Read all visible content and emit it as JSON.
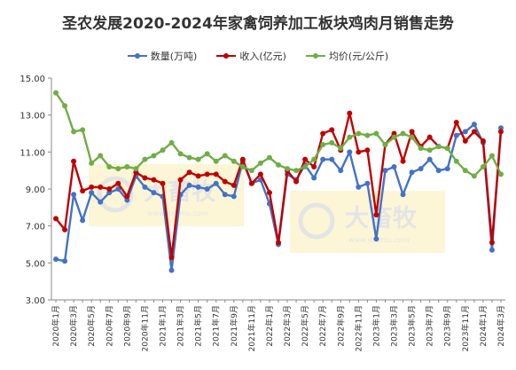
{
  "colors": {
    "series": [
      "#4472c4",
      "#c00000",
      "#70ad47"
    ],
    "watermark_bg": "#fbf3c8",
    "watermark_text": "#e4e4e4"
  },
  "watermark": {
    "cn": "大畜牧",
    "en": "www.dxumu.com"
  },
  "chart_data": {
    "type": "line",
    "title": "圣农发展2020-2024年家禽饲养加工板块鸡肉月销售走势",
    "ylim": [
      3.0,
      15.0
    ],
    "yticks": [
      "3.00",
      "5.00",
      "7.00",
      "9.00",
      "11.00",
      "13.00",
      "15.00"
    ],
    "grid": false,
    "legend_position": "top",
    "x": [
      "2020年1月",
      "2020年2月",
      "2020年3月",
      "2020年4月",
      "2020年5月",
      "2020年6月",
      "2020年7月",
      "2020年8月",
      "2020年9月",
      "2020年10月",
      "2020年11月",
      "2020年12月",
      "2021年1月",
      "2021年2月",
      "2021年3月",
      "2021年4月",
      "2021年5月",
      "2021年6月",
      "2021年7月",
      "2021年8月",
      "2021年9月",
      "2021年10月",
      "2021年11月",
      "2021年12月",
      "2022年1月",
      "2022年2月",
      "2022年3月",
      "2022年4月",
      "2022年5月",
      "2022年6月",
      "2022年7月",
      "2022年8月",
      "2022年9月",
      "2022年10月",
      "2022年11月",
      "2022年12月",
      "2023年1月",
      "2023年2月",
      "2023年3月",
      "2023年4月",
      "2023年5月",
      "2023年6月",
      "2023年7月",
      "2023年8月",
      "2023年9月",
      "2023年10月",
      "2023年11月",
      "2023年12月",
      "2024年1月",
      "2024年2月",
      "2024年3月"
    ],
    "series": [
      {
        "name": "数量(万吨)",
        "values": [
          5.2,
          5.1,
          8.7,
          7.3,
          8.8,
          8.3,
          8.8,
          9.0,
          8.4,
          9.7,
          9.1,
          8.8,
          8.6,
          4.6,
          8.7,
          9.2,
          9.1,
          9.0,
          9.3,
          8.7,
          8.6,
          10.5,
          9.3,
          9.5,
          8.2,
          6.0,
          9.8,
          9.5,
          10.3,
          9.6,
          10.6,
          10.6,
          10.0,
          11.0,
          9.1,
          9.3,
          6.3,
          10.0,
          10.2,
          8.7,
          9.9,
          10.1,
          10.6,
          10.0,
          10.1,
          11.9,
          12.1,
          12.5,
          11.5,
          5.7,
          12.3
        ]
      },
      {
        "name": "收入(亿元)",
        "values": [
          7.4,
          6.8,
          10.5,
          8.9,
          9.1,
          9.1,
          9.0,
          9.3,
          8.6,
          9.9,
          9.6,
          9.5,
          9.3,
          5.3,
          9.5,
          9.9,
          9.7,
          9.8,
          9.8,
          9.4,
          9.2,
          10.6,
          9.3,
          9.8,
          8.8,
          6.1,
          10.0,
          9.4,
          10.6,
          10.2,
          12.0,
          12.2,
          11.1,
          13.1,
          11.0,
          11.1,
          7.6,
          11.4,
          12.0,
          10.5,
          12.1,
          11.3,
          11.8,
          11.3,
          11.2,
          12.6,
          11.6,
          12.1,
          11.6,
          6.1,
          12.1
        ]
      },
      {
        "name": "均价(元/公斤)",
        "values": [
          14.2,
          13.5,
          12.1,
          12.2,
          10.4,
          10.8,
          10.2,
          10.1,
          10.2,
          10.1,
          10.6,
          10.8,
          11.1,
          11.5,
          10.9,
          10.7,
          10.6,
          10.9,
          10.5,
          10.8,
          10.5,
          10.2,
          10.0,
          10.4,
          10.7,
          10.3,
          10.1,
          10.0,
          10.2,
          10.6,
          11.4,
          11.5,
          11.2,
          11.8,
          12.0,
          11.9,
          12.0,
          11.4,
          11.8,
          12.0,
          11.8,
          11.2,
          11.1,
          11.3,
          11.2,
          10.5,
          10.0,
          9.7,
          10.2,
          10.8,
          9.8
        ]
      }
    ]
  }
}
